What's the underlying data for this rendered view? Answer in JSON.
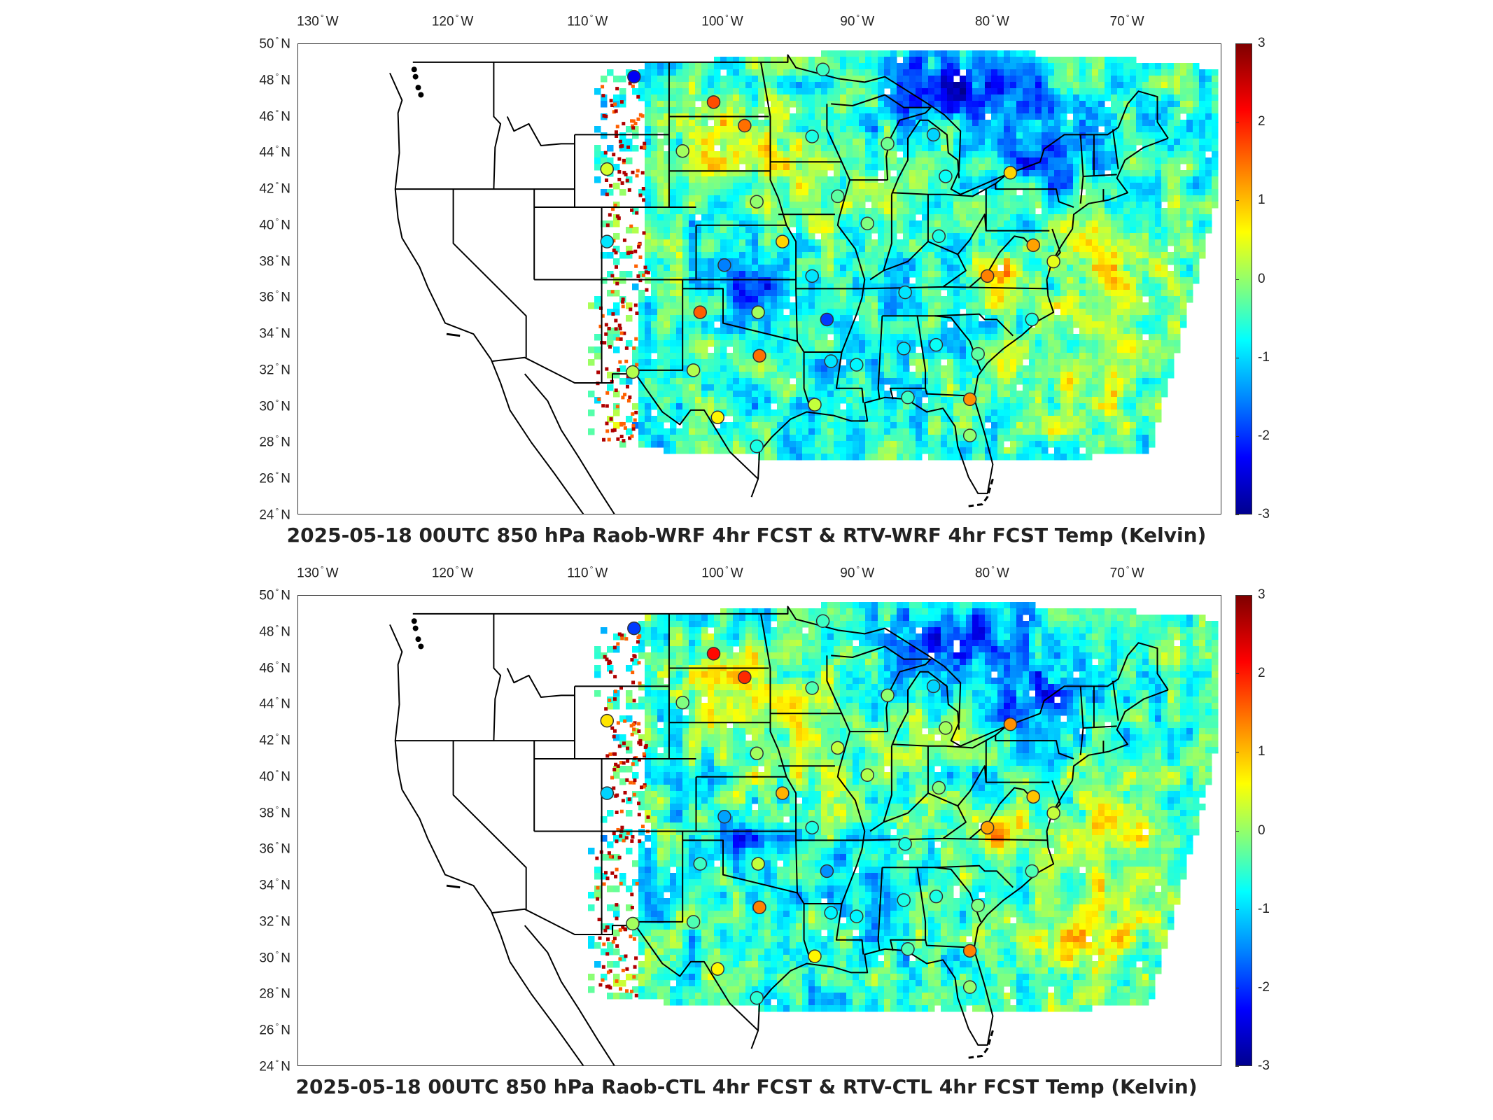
{
  "panels": [
    {
      "title": "2025-05-18 00UTC 850 hPa Raob-WRF 4hr FCST & RTV-WRF 4hr FCST Temp (Kelvin)",
      "markers": [
        {
          "lon": -106.6,
          "lat": 48.2,
          "value": -2.3
        },
        {
          "lon": -100.7,
          "lat": 46.8,
          "value": 1.8
        },
        {
          "lon": -98.4,
          "lat": 45.5,
          "value": 1.6
        },
        {
          "lon": -108.6,
          "lat": 43.1,
          "value": 0.5
        },
        {
          "lon": -103.0,
          "lat": 44.1,
          "value": 0.2
        },
        {
          "lon": -93.4,
          "lat": 44.9,
          "value": -0.6
        },
        {
          "lon": -92.6,
          "lat": 48.6,
          "value": -0.4
        },
        {
          "lon": -87.8,
          "lat": 44.5,
          "value": -0.1
        },
        {
          "lon": -84.4,
          "lat": 45.0,
          "value": -1.0
        },
        {
          "lon": -83.5,
          "lat": 42.7,
          "value": -0.7
        },
        {
          "lon": -78.7,
          "lat": 42.9,
          "value": 1.0
        },
        {
          "lon": -97.5,
          "lat": 41.3,
          "value": 0.1
        },
        {
          "lon": -91.5,
          "lat": 41.6,
          "value": -0.2
        },
        {
          "lon": -89.3,
          "lat": 40.1,
          "value": 0.0
        },
        {
          "lon": -84.0,
          "lat": 39.4,
          "value": -0.6
        },
        {
          "lon": -95.6,
          "lat": 39.1,
          "value": 1.0
        },
        {
          "lon": -108.6,
          "lat": 39.1,
          "value": -0.9
        },
        {
          "lon": -99.9,
          "lat": 37.8,
          "value": -1.5
        },
        {
          "lon": -93.4,
          "lat": 37.2,
          "value": -0.9
        },
        {
          "lon": -86.5,
          "lat": 36.3,
          "value": -0.9
        },
        {
          "lon": -80.4,
          "lat": 37.2,
          "value": 1.5
        },
        {
          "lon": -77.0,
          "lat": 38.9,
          "value": 1.3
        },
        {
          "lon": -75.5,
          "lat": 38.0,
          "value": 0.6
        },
        {
          "lon": -101.7,
          "lat": 35.2,
          "value": 1.7
        },
        {
          "lon": -97.4,
          "lat": 35.2,
          "value": 0.2
        },
        {
          "lon": -92.3,
          "lat": 34.8,
          "value": -1.9
        },
        {
          "lon": -77.1,
          "lat": 34.8,
          "value": -0.6
        },
        {
          "lon": -97.3,
          "lat": 32.8,
          "value": 1.6
        },
        {
          "lon": -92.0,
          "lat": 32.5,
          "value": -0.9
        },
        {
          "lon": -86.6,
          "lat": 33.2,
          "value": -0.9
        },
        {
          "lon": -84.2,
          "lat": 33.4,
          "value": -0.7
        },
        {
          "lon": -90.1,
          "lat": 32.3,
          "value": -0.8
        },
        {
          "lon": -81.1,
          "lat": 32.9,
          "value": -0.2
        },
        {
          "lon": -106.7,
          "lat": 31.9,
          "value": 0.3
        },
        {
          "lon": -102.2,
          "lat": 32.0,
          "value": 0.3
        },
        {
          "lon": -100.4,
          "lat": 29.4,
          "value": 0.8
        },
        {
          "lon": -93.2,
          "lat": 30.1,
          "value": 0.4
        },
        {
          "lon": -81.7,
          "lat": 30.4,
          "value": 1.4
        },
        {
          "lon": -97.5,
          "lat": 27.8,
          "value": -0.6
        },
        {
          "lon": -86.3,
          "lat": 30.5,
          "value": -0.4
        },
        {
          "lon": -81.7,
          "lat": 28.4,
          "value": 0.1
        }
      ]
    },
    {
      "title": "2025-05-18 00UTC 850 hPa Raob-CTL 4hr FCST & RTV-CTL 4hr FCST Temp (Kelvin)",
      "markers": [
        {
          "lon": -106.6,
          "lat": 48.2,
          "value": -1.9
        },
        {
          "lon": -100.7,
          "lat": 46.8,
          "value": 2.2
        },
        {
          "lon": -98.4,
          "lat": 45.5,
          "value": 2.0
        },
        {
          "lon": -108.6,
          "lat": 43.1,
          "value": 0.9
        },
        {
          "lon": -103.0,
          "lat": 44.1,
          "value": 0.0
        },
        {
          "lon": -93.4,
          "lat": 44.9,
          "value": -0.3
        },
        {
          "lon": -92.6,
          "lat": 48.6,
          "value": -0.4
        },
        {
          "lon": -87.8,
          "lat": 44.5,
          "value": 0.1
        },
        {
          "lon": -84.4,
          "lat": 45.0,
          "value": -1.0
        },
        {
          "lon": -83.5,
          "lat": 42.7,
          "value": 0.2
        },
        {
          "lon": -78.7,
          "lat": 42.9,
          "value": 1.4
        },
        {
          "lon": -97.5,
          "lat": 41.3,
          "value": 0.2
        },
        {
          "lon": -91.5,
          "lat": 41.6,
          "value": 0.4
        },
        {
          "lon": -89.3,
          "lat": 40.1,
          "value": 0.3
        },
        {
          "lon": -84.0,
          "lat": 39.4,
          "value": 0.0
        },
        {
          "lon": -95.6,
          "lat": 39.1,
          "value": 1.2
        },
        {
          "lon": -108.6,
          "lat": 39.1,
          "value": -1.0
        },
        {
          "lon": -99.9,
          "lat": 37.8,
          "value": -1.3
        },
        {
          "lon": -93.4,
          "lat": 37.2,
          "value": -0.6
        },
        {
          "lon": -86.5,
          "lat": 36.3,
          "value": -0.6
        },
        {
          "lon": -80.4,
          "lat": 37.2,
          "value": 1.3
        },
        {
          "lon": -77.0,
          "lat": 38.9,
          "value": 1.1
        },
        {
          "lon": -75.5,
          "lat": 38.0,
          "value": 0.4
        },
        {
          "lon": -101.7,
          "lat": 35.2,
          "value": -0.4
        },
        {
          "lon": -97.4,
          "lat": 35.2,
          "value": 0.4
        },
        {
          "lon": -92.3,
          "lat": 34.8,
          "value": -1.4
        },
        {
          "lon": -77.1,
          "lat": 34.8,
          "value": -0.3
        },
        {
          "lon": -97.3,
          "lat": 32.8,
          "value": 1.5
        },
        {
          "lon": -92.0,
          "lat": 32.5,
          "value": -0.8
        },
        {
          "lon": -86.6,
          "lat": 33.2,
          "value": -0.6
        },
        {
          "lon": -84.2,
          "lat": 33.4,
          "value": -0.6
        },
        {
          "lon": -90.1,
          "lat": 32.3,
          "value": -0.8
        },
        {
          "lon": -81.1,
          "lat": 32.9,
          "value": 0.0
        },
        {
          "lon": -106.7,
          "lat": 31.9,
          "value": 0.2
        },
        {
          "lon": -102.2,
          "lat": 32.0,
          "value": -0.3
        },
        {
          "lon": -100.4,
          "lat": 29.4,
          "value": 0.8
        },
        {
          "lon": -93.2,
          "lat": 30.1,
          "value": 0.8
        },
        {
          "lon": -81.7,
          "lat": 30.4,
          "value": 1.5
        },
        {
          "lon": -97.5,
          "lat": 27.8,
          "value": -0.5
        },
        {
          "lon": -86.3,
          "lat": 30.5,
          "value": -0.3
        },
        {
          "lon": -81.7,
          "lat": 28.4,
          "value": 0.1
        }
      ]
    }
  ],
  "axes": {
    "lon_ticks": [
      "130",
      "120",
      "110",
      "100",
      "90",
      "80",
      "70"
    ],
    "lon_hemisphere": "W",
    "lat_ticks": [
      "50",
      "48",
      "46",
      "44",
      "42",
      "40",
      "38",
      "36",
      "34",
      "32",
      "30",
      "28",
      "26",
      "24"
    ],
    "lat_hemisphere": "N"
  },
  "colorbar": {
    "ticks": [
      "3",
      "2",
      "1",
      "0",
      "-1",
      "-2",
      "-3"
    ],
    "range": [
      -3,
      3
    ],
    "colormap": "jet"
  }
}
